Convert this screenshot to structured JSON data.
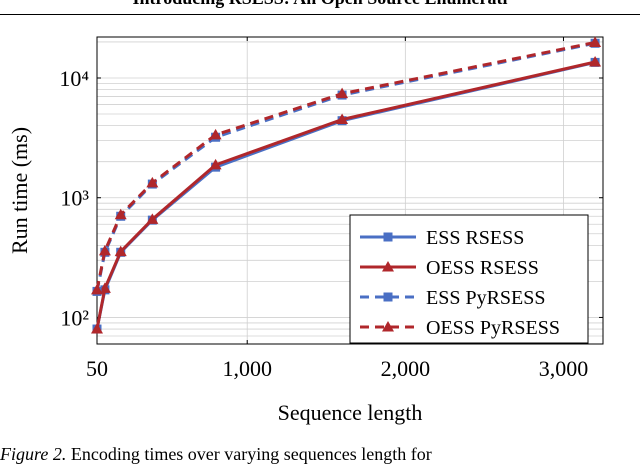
{
  "header": {
    "title": "Introducing RSESS: An Open Source Enumerati"
  },
  "caption": {
    "label": "Figure 2.",
    "text": " Encoding times over varying sequences length for"
  },
  "chart_data": {
    "type": "line",
    "xlabel": "Sequence length",
    "ylabel": "Run time (ms)",
    "xlim": [
      50,
      3250
    ],
    "ylim": [
      60,
      22000
    ],
    "y_scale": "log",
    "x_ticks": [
      50,
      1000,
      2000,
      3000
    ],
    "x_tick_labels": [
      "50",
      "1,000",
      "2,000",
      "3,000"
    ],
    "y_ticks": [
      100,
      1000,
      10000
    ],
    "y_tick_labels": [
      "10²",
      "10³",
      "10⁴"
    ],
    "grid": true,
    "legend_position": "bottom-right",
    "x": [
      50,
      100,
      200,
      400,
      800,
      1600,
      3200
    ],
    "series": [
      {
        "name": "ESS RSESS",
        "color": "#4a6fc4",
        "marker": "square",
        "dashed": false,
        "values": [
          80,
          170,
          350,
          650,
          1800,
          4400,
          13500
        ]
      },
      {
        "name": "OESS RSESS",
        "color": "#b0272b",
        "marker": "triangle",
        "dashed": false,
        "values": [
          80,
          175,
          355,
          660,
          1880,
          4500,
          13600
        ]
      },
      {
        "name": "ESS PyRSESS",
        "color": "#4a6fc4",
        "marker": "square",
        "dashed": true,
        "values": [
          165,
          350,
          700,
          1300,
          3200,
          7200,
          19500
        ]
      },
      {
        "name": "OESS PyRSESS",
        "color": "#b0272b",
        "marker": "triangle",
        "dashed": true,
        "values": [
          170,
          360,
          720,
          1330,
          3350,
          7400,
          19800
        ]
      }
    ]
  }
}
